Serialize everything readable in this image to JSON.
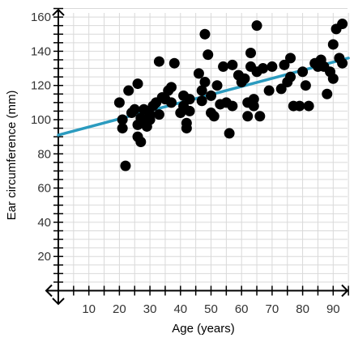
{
  "chart_data": {
    "type": "scatter",
    "title": "",
    "xlabel": "Age (years)",
    "ylabel": "Ear circumference (mm)",
    "xlim": [
      0,
      95
    ],
    "ylim": [
      0,
      165
    ],
    "x_ticks": [
      10,
      20,
      30,
      40,
      50,
      60,
      70,
      80,
      90
    ],
    "y_ticks": [
      20,
      40,
      60,
      80,
      100,
      120,
      140,
      160
    ],
    "grid": true,
    "colors": {
      "points": "#000000",
      "trend_line": "#2b9bbf",
      "grid": "#d9d9d9",
      "axis": "#000000"
    },
    "trend_line": {
      "x": [
        0,
        95
      ],
      "y": [
        91,
        136
      ]
    },
    "points": [
      {
        "x": 20,
        "y": 110
      },
      {
        "x": 21,
        "y": 95
      },
      {
        "x": 21,
        "y": 100
      },
      {
        "x": 22,
        "y": 73
      },
      {
        "x": 23,
        "y": 117
      },
      {
        "x": 24,
        "y": 104
      },
      {
        "x": 25,
        "y": 106
      },
      {
        "x": 26,
        "y": 121
      },
      {
        "x": 26,
        "y": 97
      },
      {
        "x": 26,
        "y": 90
      },
      {
        "x": 27,
        "y": 87
      },
      {
        "x": 27,
        "y": 101
      },
      {
        "x": 28,
        "y": 106
      },
      {
        "x": 28,
        "y": 98
      },
      {
        "x": 29,
        "y": 96
      },
      {
        "x": 30,
        "y": 100
      },
      {
        "x": 30,
        "y": 103
      },
      {
        "x": 31,
        "y": 108
      },
      {
        "x": 32,
        "y": 110
      },
      {
        "x": 33,
        "y": 134
      },
      {
        "x": 33,
        "y": 103
      },
      {
        "x": 34,
        "y": 113
      },
      {
        "x": 35,
        "y": 112
      },
      {
        "x": 36,
        "y": 117
      },
      {
        "x": 37,
        "y": 119
      },
      {
        "x": 37,
        "y": 110
      },
      {
        "x": 38,
        "y": 133
      },
      {
        "x": 40,
        "y": 104
      },
      {
        "x": 41,
        "y": 108
      },
      {
        "x": 41,
        "y": 114
      },
      {
        "x": 42,
        "y": 95
      },
      {
        "x": 42,
        "y": 98
      },
      {
        "x": 43,
        "y": 112
      },
      {
        "x": 43,
        "y": 105
      },
      {
        "x": 46,
        "y": 127
      },
      {
        "x": 47,
        "y": 117
      },
      {
        "x": 47,
        "y": 111
      },
      {
        "x": 48,
        "y": 122
      },
      {
        "x": 48,
        "y": 150
      },
      {
        "x": 49,
        "y": 138
      },
      {
        "x": 50,
        "y": 104
      },
      {
        "x": 50,
        "y": 114
      },
      {
        "x": 51,
        "y": 102
      },
      {
        "x": 52,
        "y": 120
      },
      {
        "x": 53,
        "y": 109
      },
      {
        "x": 54,
        "y": 131
      },
      {
        "x": 55,
        "y": 110
      },
      {
        "x": 56,
        "y": 92
      },
      {
        "x": 57,
        "y": 132
      },
      {
        "x": 57,
        "y": 108
      },
      {
        "x": 59,
        "y": 126
      },
      {
        "x": 60,
        "y": 122
      },
      {
        "x": 61,
        "y": 124
      },
      {
        "x": 62,
        "y": 102
      },
      {
        "x": 62,
        "y": 110
      },
      {
        "x": 63,
        "y": 139
      },
      {
        "x": 63,
        "y": 131
      },
      {
        "x": 64,
        "y": 112
      },
      {
        "x": 64,
        "y": 108
      },
      {
        "x": 65,
        "y": 155
      },
      {
        "x": 65,
        "y": 128
      },
      {
        "x": 66,
        "y": 102
      },
      {
        "x": 67,
        "y": 130
      },
      {
        "x": 69,
        "y": 117
      },
      {
        "x": 70,
        "y": 131
      },
      {
        "x": 73,
        "y": 118
      },
      {
        "x": 74,
        "y": 132
      },
      {
        "x": 75,
        "y": 122
      },
      {
        "x": 76,
        "y": 136
      },
      {
        "x": 76,
        "y": 125
      },
      {
        "x": 77,
        "y": 108
      },
      {
        "x": 79,
        "y": 108
      },
      {
        "x": 80,
        "y": 128
      },
      {
        "x": 81,
        "y": 120
      },
      {
        "x": 82,
        "y": 108
      },
      {
        "x": 84,
        "y": 133
      },
      {
        "x": 85,
        "y": 131
      },
      {
        "x": 86,
        "y": 135
      },
      {
        "x": 87,
        "y": 131
      },
      {
        "x": 88,
        "y": 115
      },
      {
        "x": 89,
        "y": 128
      },
      {
        "x": 90,
        "y": 144
      },
      {
        "x": 90,
        "y": 124
      },
      {
        "x": 91,
        "y": 153
      },
      {
        "x": 92,
        "y": 136
      },
      {
        "x": 93,
        "y": 156
      },
      {
        "x": 93,
        "y": 133
      }
    ]
  }
}
